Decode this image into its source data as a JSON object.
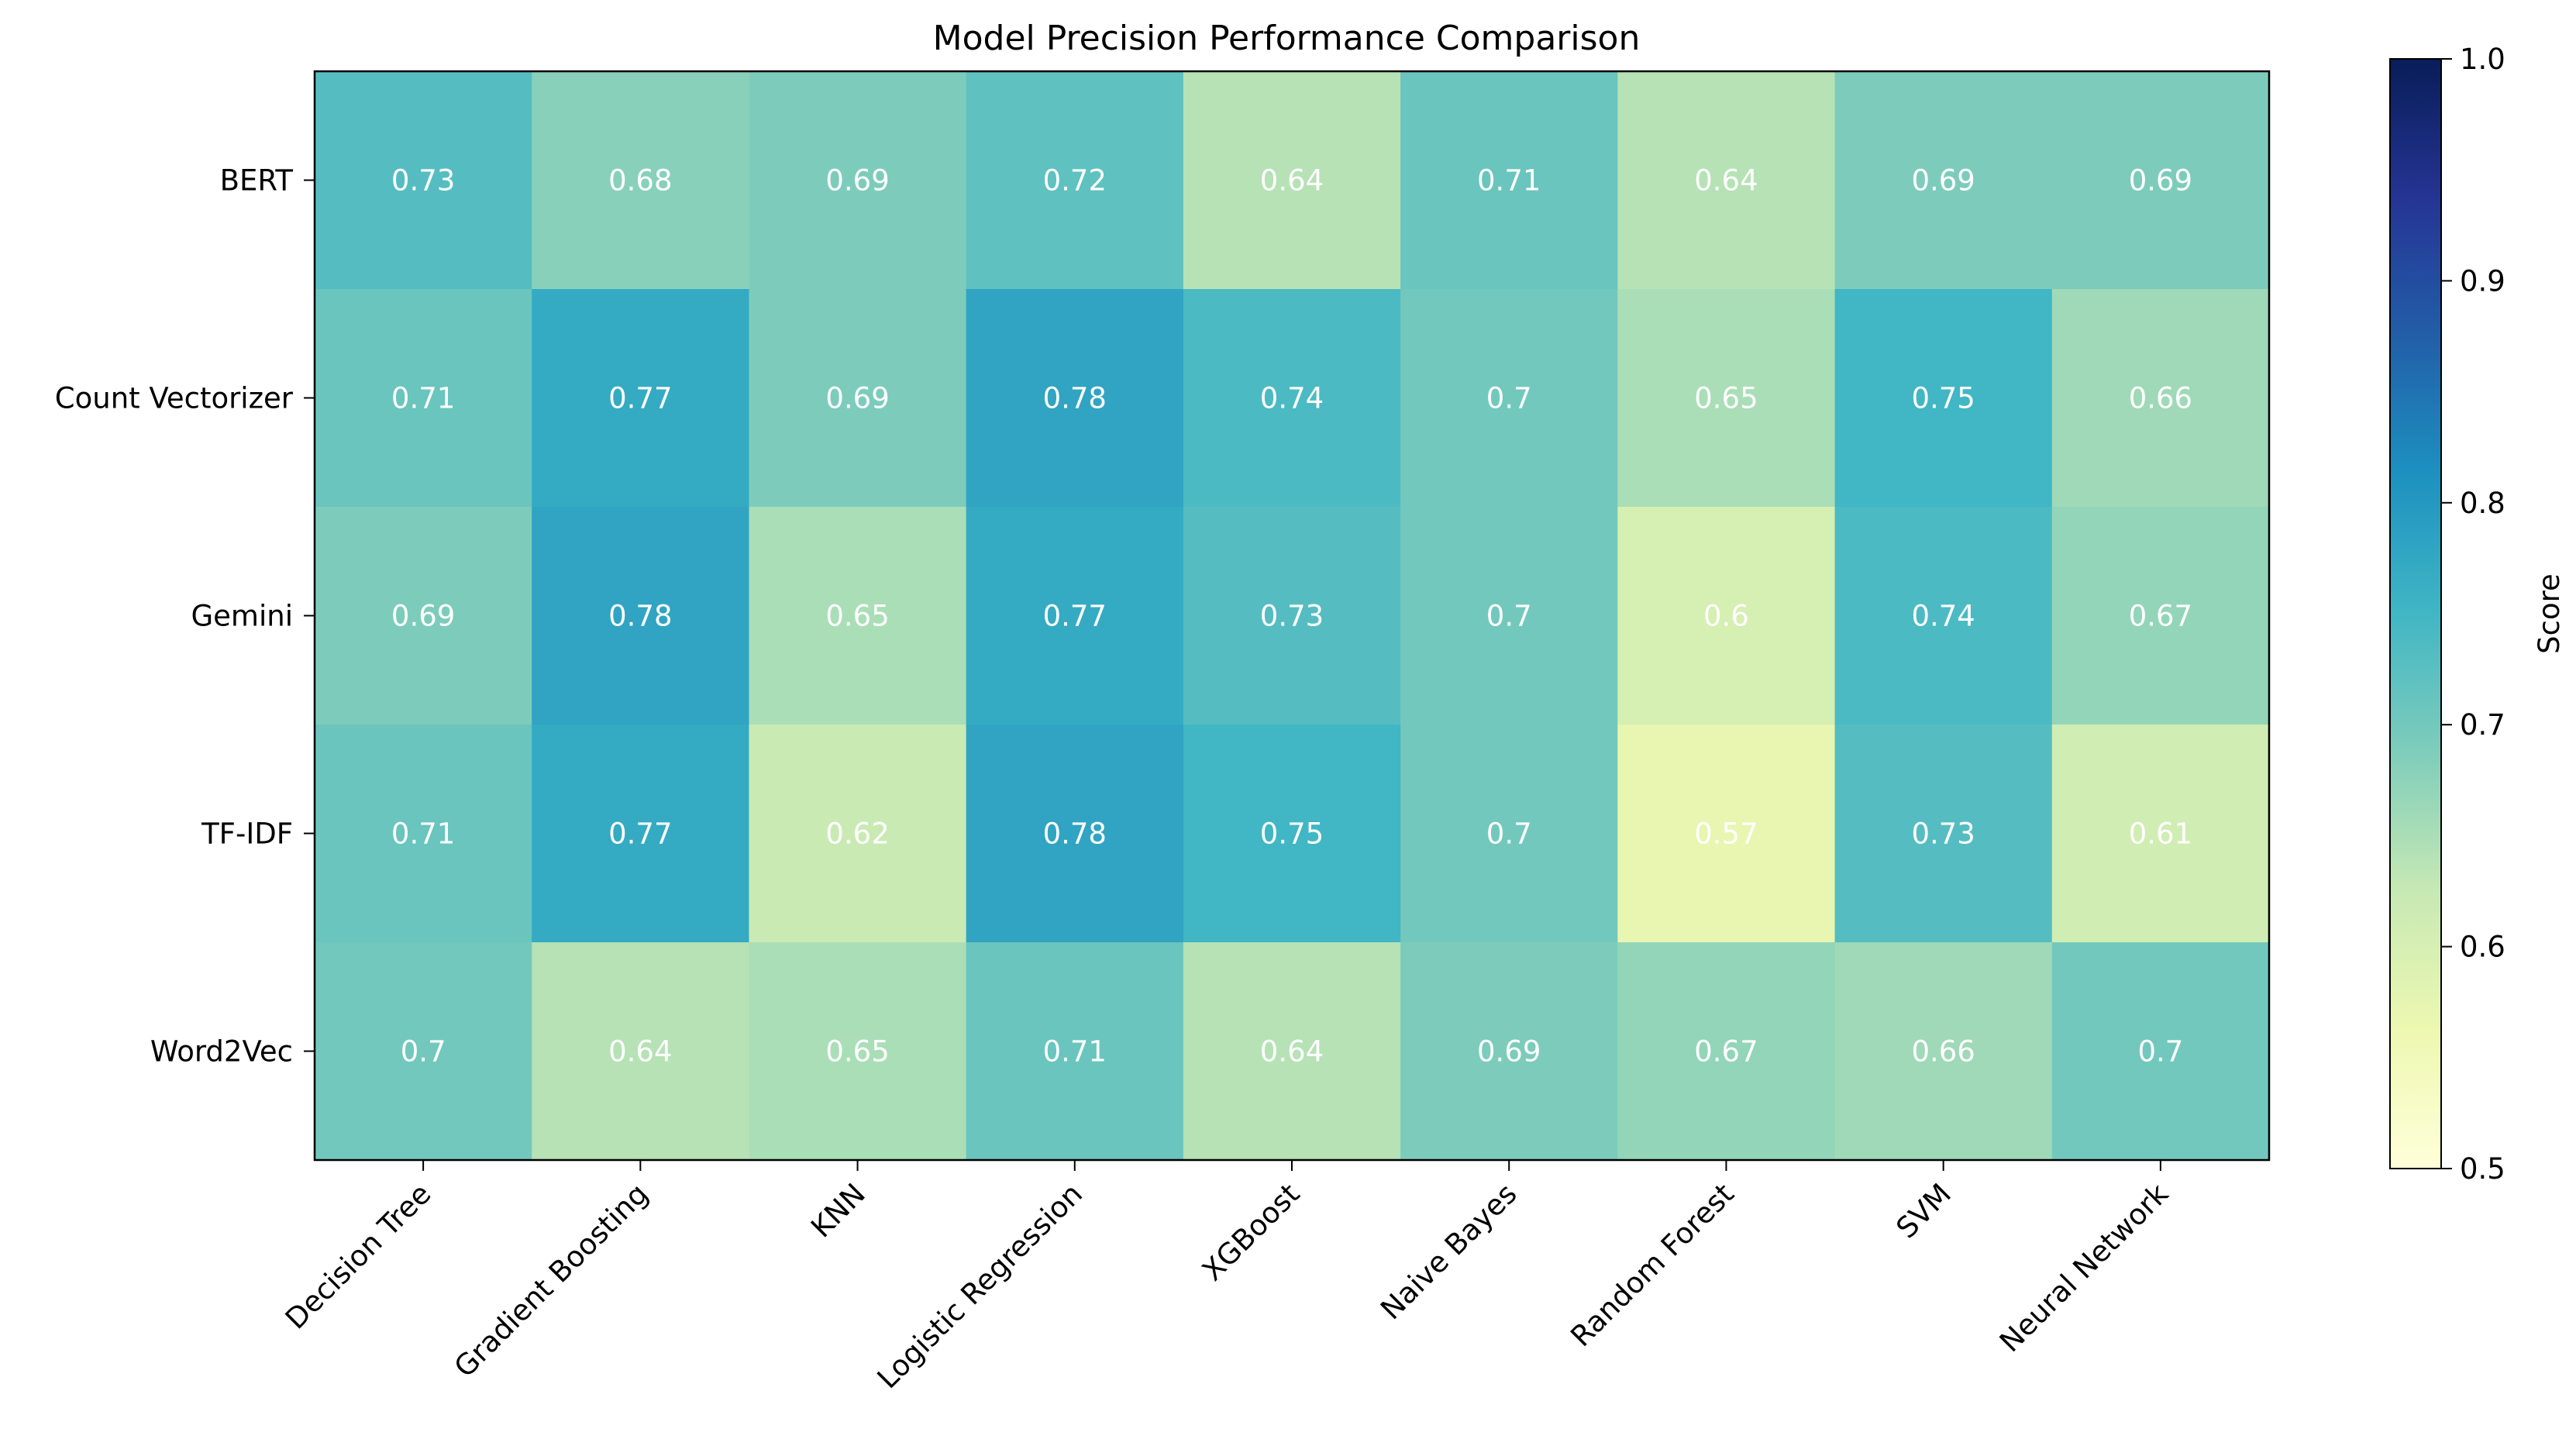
{
  "chart_data": {
    "type": "heatmap",
    "title": "Model Precision Performance Comparison",
    "xlabel": "",
    "ylabel": "",
    "columns": [
      "Decision Tree",
      "Gradient Boosting",
      "KNN",
      "Logistic Regression",
      "XGBoost",
      "Naive Bayes",
      "Random Forest",
      "SVM",
      "Neural Network"
    ],
    "rows": [
      "BERT",
      "Count Vectorizer",
      "Gemini",
      "TF-IDF",
      "Word2Vec"
    ],
    "values": [
      [
        0.73,
        0.68,
        0.69,
        0.72,
        0.64,
        0.71,
        0.64,
        0.69,
        0.69
      ],
      [
        0.71,
        0.77,
        0.69,
        0.78,
        0.74,
        0.7,
        0.65,
        0.75,
        0.66
      ],
      [
        0.69,
        0.78,
        0.65,
        0.77,
        0.73,
        0.7,
        0.6,
        0.74,
        0.67
      ],
      [
        0.71,
        0.77,
        0.62,
        0.78,
        0.75,
        0.7,
        0.57,
        0.73,
        0.61
      ],
      [
        0.7,
        0.64,
        0.65,
        0.71,
        0.64,
        0.69,
        0.67,
        0.66,
        0.7
      ]
    ],
    "value_labels": [
      [
        "0.73",
        "0.68",
        "0.69",
        "0.72",
        "0.64",
        "0.71",
        "0.64",
        "0.69",
        "0.69"
      ],
      [
        "0.71",
        "0.77",
        "0.69",
        "0.78",
        "0.74",
        "0.7",
        "0.65",
        "0.75",
        "0.66"
      ],
      [
        "0.69",
        "0.78",
        "0.65",
        "0.77",
        "0.73",
        "0.7",
        "0.6",
        "0.74",
        "0.67"
      ],
      [
        "0.71",
        "0.77",
        "0.62",
        "0.78",
        "0.75",
        "0.7",
        "0.57",
        "0.73",
        "0.61"
      ],
      [
        "0.7",
        "0.64",
        "0.65",
        "0.71",
        "0.64",
        "0.69",
        "0.67",
        "0.66",
        "0.7"
      ]
    ],
    "colorbar": {
      "label": "Score",
      "range": [
        0.5,
        1.0
      ],
      "ticks": [
        0.5,
        0.6,
        0.7,
        0.8,
        0.9,
        1.0
      ],
      "tick_labels": [
        "0.5",
        "0.6",
        "0.7",
        "0.8",
        "0.9",
        "1.0"
      ]
    },
    "colormap": "YlGnBu",
    "colormap_stops": [
      "#ffffd9",
      "#edf8b1",
      "#c7e9b4",
      "#7fcdbb",
      "#41b6c4",
      "#1d91c0",
      "#225ea8",
      "#253494",
      "#081d58"
    ],
    "cell_text_color": "#ffffff",
    "grid": false
  }
}
